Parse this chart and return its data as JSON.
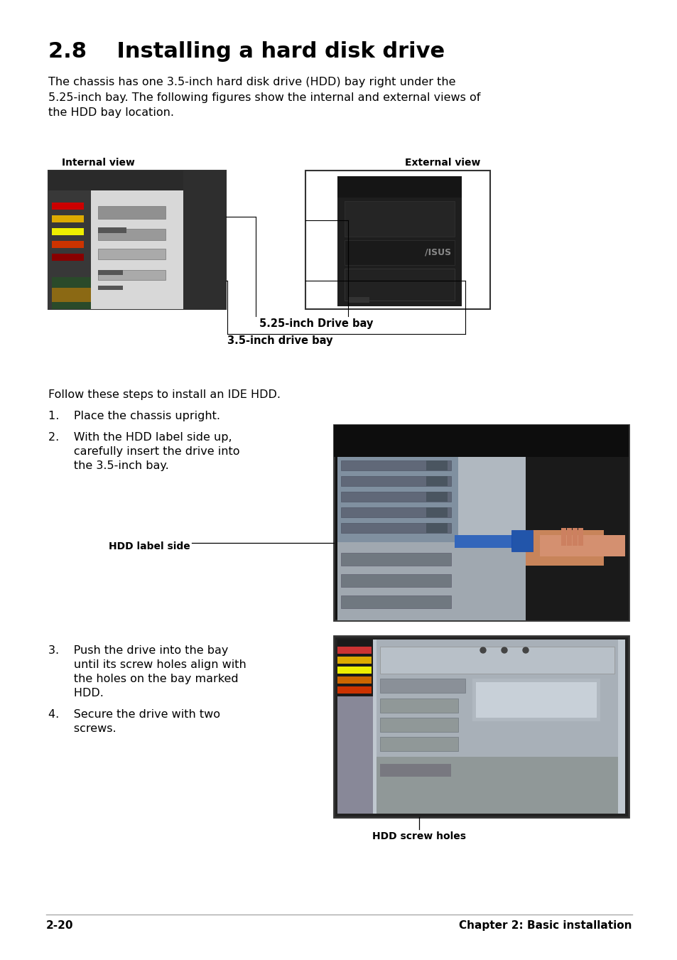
{
  "page_bg": "#ffffff",
  "title": "2.8    Installing a hard disk drive",
  "title_fontsize": 21,
  "body_text": "The chassis has one 3.5-inch hard disk drive (HDD) bay right under the\n5.25-inch bay. The following figures show the internal and external views of\nthe HDD bay location.",
  "body_fontsize": 11.5,
  "label_internal": "Internal view",
  "label_external": "External view",
  "label_525": "5.25-inch Drive bay",
  "label_35": "3.5-inch drive bay",
  "follow_text": "Follow these steps to install an IDE HDD.",
  "step1": "1.    Place the chassis upright.",
  "step2_line1": "2.    With the HDD label side up,",
  "step2_line2": "       carefully insert the drive into",
  "step2_line3": "       the 3.5-inch bay.",
  "hdd_label_text": "HDD label side",
  "step3_line1": "3.    Push the drive into the bay",
  "step3_line2": "       until its screw holes align with",
  "step3_line3": "       the holes on the bay marked",
  "step3_line4": "       HDD.",
  "step4_line1": "4.    Secure the drive with two",
  "step4_line2": "       screws.",
  "hdd_screw_text": "HDD screw holes",
  "footer_left": "2-20",
  "footer_right": "Chapter 2: Basic installation",
  "footer_fontsize": 11
}
